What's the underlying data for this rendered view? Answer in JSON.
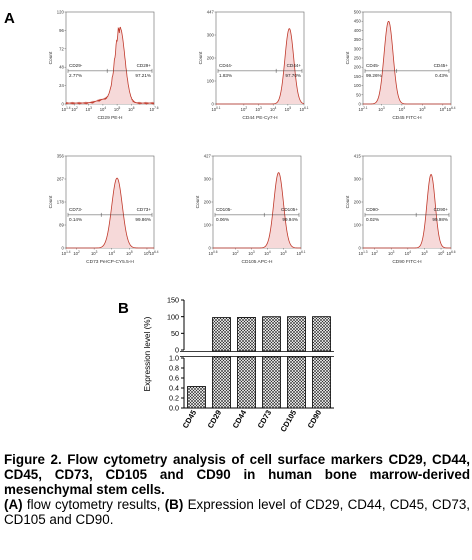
{
  "figure": {
    "panel_a_label": "A",
    "panel_b_label": "B",
    "caption_title": "Figure 2. Flow cytometry analysis of cell surface markers CD29, CD44, CD45, CD73, CD105 and CD90 in human bone marrow-derived mesenchymal stem cells.",
    "caption_body_a": "(A)",
    "caption_body_a_text": " flow cytometry results, ",
    "caption_body_b": "(B)",
    "caption_body_b_text": " Expression level of CD29, CD44, CD45, CD73, CD105 and CD90."
  },
  "chart_data": [
    {
      "type": "area",
      "ylabel": "Count",
      "xlabel": "CD29 PE-H",
      "x_ticks": [
        "10^1.4",
        "10^2",
        "10^3",
        "10^4",
        "10^5",
        "10^6",
        "10^7.6"
      ],
      "y_ticks": [
        "0",
        "24",
        "48",
        "72",
        "96",
        "120"
      ],
      "gates": [
        {
          "label": "CD29-",
          "percent": "2.77%"
        },
        {
          "label": "CD29+",
          "percent": "97.21%"
        }
      ],
      "peak_log": 5.2,
      "peak_height": 0.82,
      "width": 0.35,
      "noise": true
    },
    {
      "type": "area",
      "ylabel": "Count",
      "xlabel": "CD44 PE-Cy7-H",
      "x_ticks": [
        "10^0.1",
        "10^2",
        "10^3",
        "10^4",
        "10^5",
        "10^6.1"
      ],
      "y_ticks": [
        "0",
        "100",
        "200",
        "300",
        "447"
      ],
      "gates": [
        {
          "label": "CD44-",
          "percent": "1.83%"
        },
        {
          "label": "CD44+",
          "percent": "97.70%"
        }
      ],
      "peak_log": 5.1,
      "peak_height": 0.82,
      "width": 0.3,
      "noise": false
    },
    {
      "type": "area",
      "ylabel": "Count",
      "xlabel": "CD45 FITC-H",
      "x_ticks": [
        "10^2.1",
        "10^3",
        "10^4",
        "10^5",
        "10^6",
        "10^6.4"
      ],
      "y_ticks": [
        "0",
        "50",
        "100",
        "150",
        "200",
        "250",
        "300",
        "350",
        "400",
        "450",
        "500"
      ],
      "gates": [
        {
          "label": "CD45-",
          "percent": "99.26%"
        },
        {
          "label": "CD45+",
          "percent": "0.43%"
        }
      ],
      "peak_log": 3.35,
      "peak_height": 0.9,
      "width": 0.22,
      "noise": false
    },
    {
      "type": "area",
      "ylabel": "Count",
      "xlabel": "CD73 PerCP-CY5.5-H",
      "x_ticks": [
        "10^1.4",
        "10^2",
        "10^3",
        "10^4",
        "10^5",
        "10^6",
        "10^6.4"
      ],
      "y_ticks": [
        "0",
        "89",
        "178",
        "267",
        "356"
      ],
      "gates": [
        {
          "label": "CD73-",
          "percent": "0.14%"
        },
        {
          "label": "CD73+",
          "percent": "99.86%"
        }
      ],
      "peak_log": 4.3,
      "peak_height": 0.76,
      "width": 0.3,
      "noise": false
    },
    {
      "type": "area",
      "ylabel": "Count",
      "xlabel": "CD105 APC-H",
      "x_ticks": [
        "10^0.6",
        "10^2",
        "10^3",
        "10^4",
        "10^5",
        "10^6.1"
      ],
      "y_ticks": [
        "0",
        "100",
        "200",
        "300",
        "427"
      ],
      "gates": [
        {
          "label": "CD105-",
          "percent": "0.06%"
        },
        {
          "label": "CD105+",
          "percent": "99.94%"
        }
      ],
      "peak_log": 4.7,
      "peak_height": 0.82,
      "width": 0.3,
      "noise": false
    },
    {
      "type": "area",
      "ylabel": "Count",
      "xlabel": "CD90 FITC-H",
      "x_ticks": [
        "10^1.3",
        "10^2",
        "10^3",
        "10^4",
        "10^5",
        "10^6",
        "10^6.6"
      ],
      "y_ticks": [
        "0",
        "100",
        "200",
        "300",
        "415"
      ],
      "gates": [
        {
          "label": "CD90-",
          "percent": "0.02%"
        },
        {
          "label": "CD90+",
          "percent": "99.98%"
        }
      ],
      "peak_log": 5.4,
      "peak_height": 0.8,
      "width": 0.25,
      "noise": false
    },
    {
      "type": "bar",
      "categories": [
        "CD45",
        "CD29",
        "CD44",
        "CD73",
        "CD105",
        "CD90"
      ],
      "values": [
        0.43,
        97.21,
        97.7,
        99.86,
        99.94,
        99.98
      ],
      "ylabel": "Expression level (%)",
      "y_ticks_upper": [
        "100",
        "50",
        "0"
      ],
      "y_ticks_lower": [
        "1.0",
        "0.8",
        "0.6",
        "0.4",
        "0.2",
        "0.0"
      ],
      "y_ticks_top": "150",
      "axis_break": true
    }
  ]
}
